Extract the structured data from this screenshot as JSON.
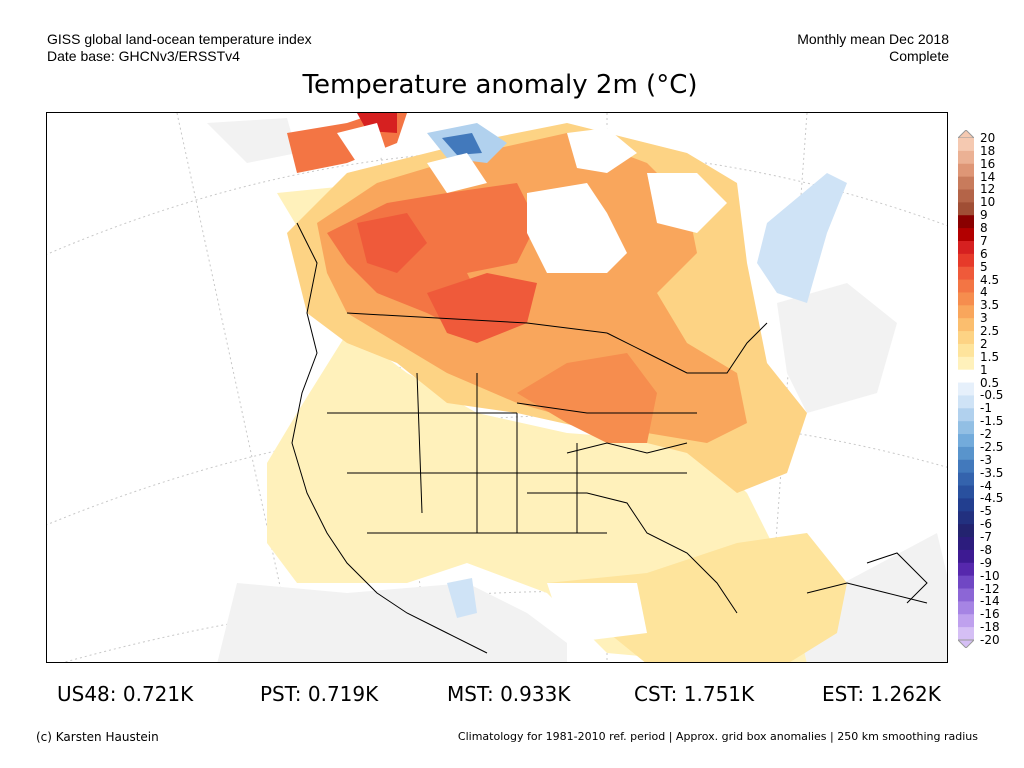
{
  "header": {
    "line1": "GISS global land-ocean temperature index",
    "line2": "Date base: GHCNv3/ERSSTv4",
    "period": "Monthly mean Dec 2018",
    "status": "Complete"
  },
  "title": "Temperature anomaly 2m (°C)",
  "colorbar": {
    "labels": [
      "20",
      "18",
      "16",
      "14",
      "12",
      "10",
      "9",
      "8",
      "7",
      "6",
      "5",
      "4.5",
      "4",
      "3.5",
      "3",
      "2.5",
      "2",
      "1.5",
      "1",
      "0.5",
      "-0.5",
      "-1",
      "-1.5",
      "-2",
      "-2.5",
      "-3",
      "-3.5",
      "-4",
      "-4.5",
      "-5",
      "-6",
      "-7",
      "-8",
      "-9",
      "-10",
      "-12",
      "-14",
      "-16",
      "-18",
      "-20"
    ],
    "colors": [
      "#f5c9b1",
      "#ebb194",
      "#de9676",
      "#c87b5c",
      "#b46448",
      "#a04e35",
      "#8a0000",
      "#b20000",
      "#d62020",
      "#e63a2a",
      "#ef5a3a",
      "#f37544",
      "#f68d4e",
      "#f9a65c",
      "#fbbe6e",
      "#fdd384",
      "#fee49c",
      "#fff1bb",
      "#ffffff",
      "#e6f0fb",
      "#cfe3f6",
      "#b1d1ee",
      "#92bfe4",
      "#73abdb",
      "#5994cc",
      "#4279bc",
      "#3463ad",
      "#29509e",
      "#223e8f",
      "#22307f",
      "#23236f",
      "#2c1c7d",
      "#3d1a92",
      "#5628ad",
      "#7047c4",
      "#8c66d6",
      "#a684e4",
      "#bfa1ee",
      "#d5bff5"
    ]
  },
  "stats": [
    {
      "label": "US48: 0.721K"
    },
    {
      "label": "PST: 0.719K"
    },
    {
      "label": "MST: 0.933K"
    },
    {
      "label": "CST: 1.751K"
    },
    {
      "label": "EST: 1.262K"
    }
  ],
  "footer": {
    "credit": "(c) Karsten Haustein",
    "note": "Climatology for 1981-2010 ref. period | Approx. grid box anomalies | 250 km smoothing radius"
  }
}
